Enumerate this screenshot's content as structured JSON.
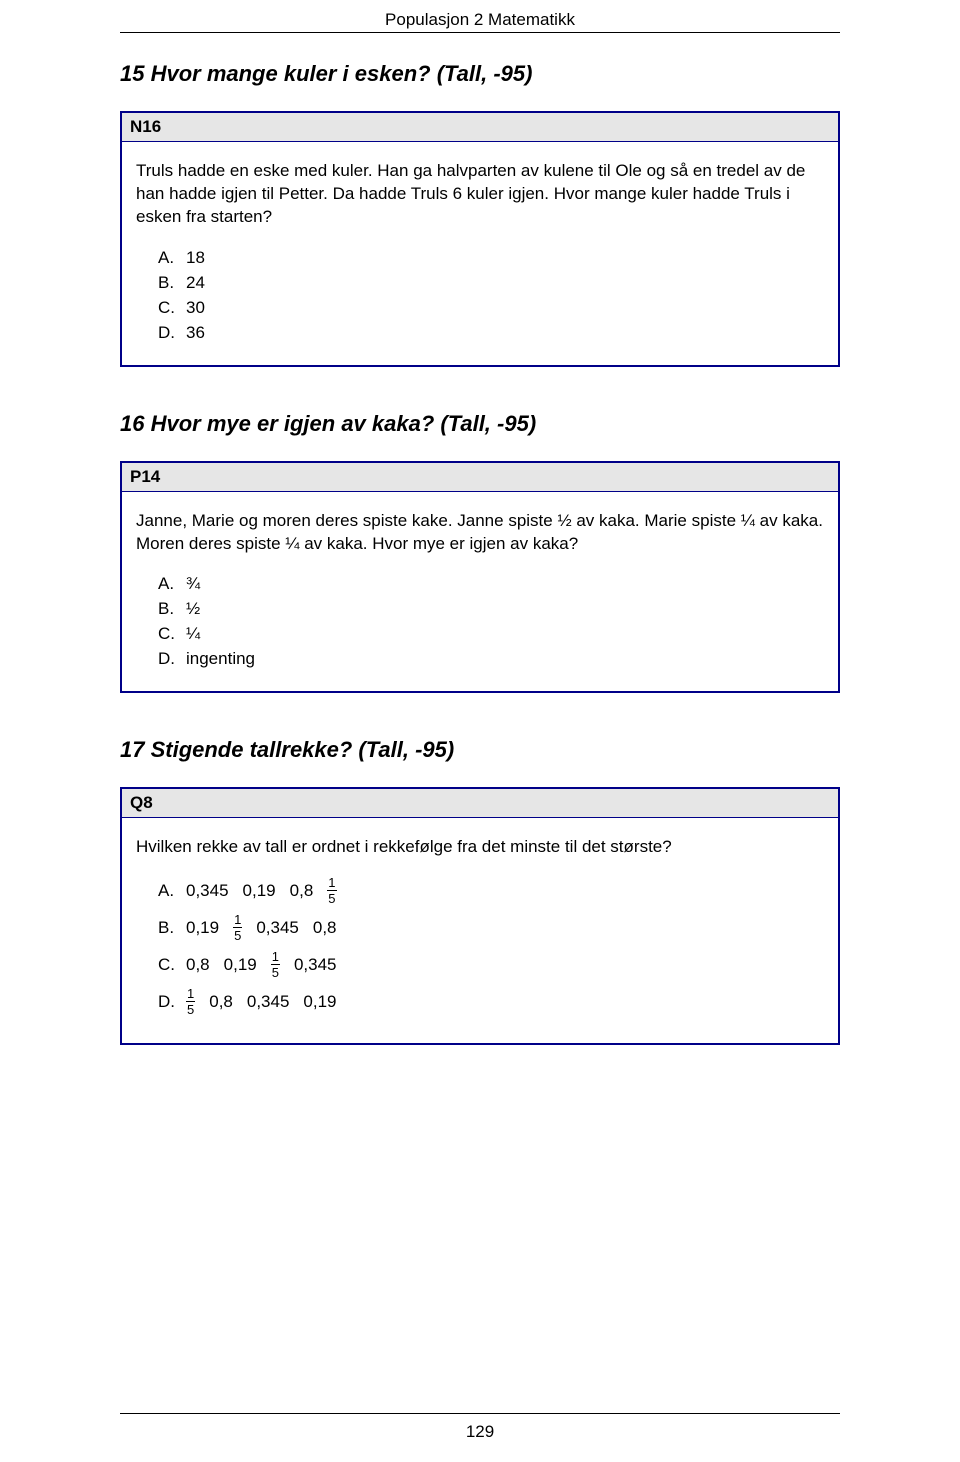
{
  "header": {
    "title": "Populasjon 2 Matematikk"
  },
  "sections": [
    {
      "title": "15 Hvor mange kuler i esken? (Tall, -95)",
      "box": {
        "id": "N16",
        "text": "Truls hadde en eske med kuler. Han ga halvparten av kulene til Ole og så en tredel av de han hadde igjen til Petter. Da hadde Truls 6 kuler igjen. Hvor mange kuler hadde Truls i esken fra starten?",
        "options": [
          {
            "label": "A.",
            "value": "18"
          },
          {
            "label": "B.",
            "value": "24"
          },
          {
            "label": "C.",
            "value": "30"
          },
          {
            "label": "D.",
            "value": "36"
          }
        ]
      }
    },
    {
      "title": "16 Hvor mye er igjen av kaka?  (Tall, -95)",
      "box": {
        "id": "P14",
        "text": "Janne, Marie og moren deres spiste kake. Janne spiste ½ av kaka. Marie spiste ¼ av kaka. Moren deres spiste ¼ av kaka. Hvor mye er igjen av kaka?",
        "options": [
          {
            "label": "A.",
            "value": "¾"
          },
          {
            "label": "B.",
            "value": "½"
          },
          {
            "label": "C.",
            "value": "¼"
          },
          {
            "label": "D.",
            "value": "ingenting"
          }
        ]
      }
    },
    {
      "title": "17 Stigende tallrekke? (Tall, -95)",
      "box": {
        "id": "Q8",
        "text": "Hvilken rekke av tall er ordnet i rekkefølge fra det minste til det største?",
        "options_frac": [
          {
            "label": "A.",
            "parts": [
              "0,345",
              "0,19",
              "0,8",
              {
                "frac": [
                  "1",
                  "5"
                ]
              }
            ]
          },
          {
            "label": "B.",
            "parts": [
              "0,19",
              {
                "frac": [
                  "1",
                  "5"
                ]
              },
              "0,345",
              "0,8"
            ]
          },
          {
            "label": "C.",
            "parts": [
              "0,8",
              "0,19",
              {
                "frac": [
                  "1",
                  "5"
                ]
              },
              "0,345"
            ]
          },
          {
            "label": "D.",
            "parts": [
              {
                "frac": [
                  "1",
                  "5"
                ]
              },
              "0,8",
              "0,345",
              "0,19"
            ]
          }
        ]
      }
    }
  ],
  "page_number": "129",
  "colors": {
    "box_border": "#000088",
    "id_background": "#e6e6e6",
    "text": "#000000",
    "background": "#ffffff"
  }
}
